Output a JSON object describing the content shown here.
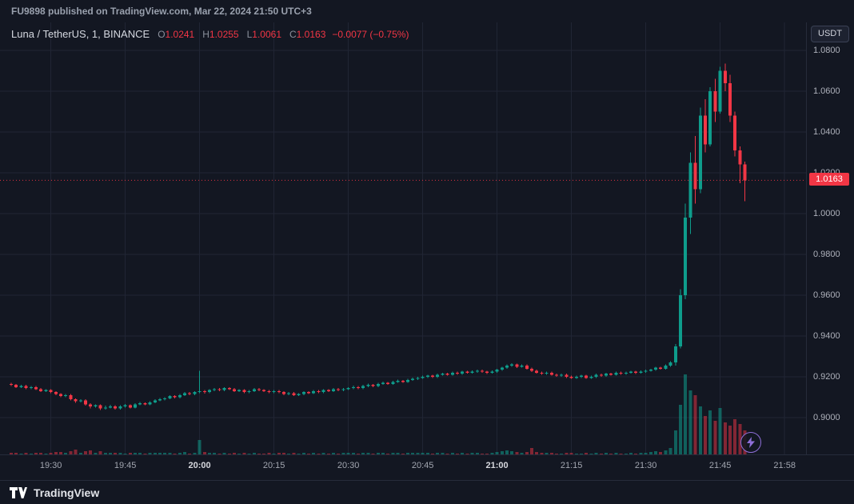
{
  "publish_bar": {
    "text": "FU9898 published on TradingView.com, Mar 22, 2024 21:50 UTC+3"
  },
  "legend": {
    "symbol": "Luna / TetherUS, 1, BINANCE",
    "ohlc": [
      {
        "label": "O",
        "value": "1.0241"
      },
      {
        "label": "H",
        "value": "1.0255"
      },
      {
        "label": "L",
        "value": "1.0061"
      },
      {
        "label": "C",
        "value": "1.0163"
      }
    ],
    "change": "−0.0077 (−0.75%)"
  },
  "price_scale": {
    "currency_button_label": "USDT",
    "last_price_label": "1.0163"
  },
  "footer": {
    "brand": "TradingView"
  },
  "icons": {
    "lightning": "lightning-bolt-in-circle",
    "brand_logo": "tradingview-logo"
  },
  "colors": {
    "background": "#131722",
    "grid": "#202534",
    "up": "#0e9d8c",
    "down": "#f23645",
    "volume_up": "rgba(14,157,140,0.55)",
    "volume_down": "rgba(242,54,69,0.5)",
    "last_price_line": "#f23645",
    "accent_purple": "#8e6fd8"
  },
  "chart_data": {
    "type": "candlestick",
    "title": "Luna / TetherUS, 1, BINANCE",
    "symbol": "LUNA/USDT",
    "exchange": "BINANCE",
    "interval_minutes": 1,
    "start_time": "19:22",
    "end_time": "21:50",
    "last_price": 1.0163,
    "y_ticks": [
      "1.0800",
      "1.0600",
      "1.0400",
      "1.0200",
      "1.0000",
      "0.9800",
      "0.9600",
      "0.9400",
      "0.9200",
      "0.9000"
    ],
    "y_visible_range": [
      0.882,
      1.093
    ],
    "x_ticks": [
      {
        "label": "19:30",
        "bold": false
      },
      {
        "label": "19:45",
        "bold": false
      },
      {
        "label": "20:00",
        "bold": true
      },
      {
        "label": "20:15",
        "bold": false
      },
      {
        "label": "20:30",
        "bold": false
      },
      {
        "label": "20:45",
        "bold": false
      },
      {
        "label": "21:00",
        "bold": true
      },
      {
        "label": "21:15",
        "bold": false
      },
      {
        "label": "21:30",
        "bold": false
      },
      {
        "label": "21:45",
        "bold": false
      },
      {
        "label": "21:58",
        "bold": false
      }
    ],
    "volume_units": "relative (100 = tallest bar)",
    "ohlcv_format": [
      "open",
      "high",
      "low",
      "close",
      "volume"
    ],
    "ohlcv": [
      [
        0.9165,
        0.917,
        0.9155,
        0.916,
        2
      ],
      [
        0.916,
        0.9165,
        0.9145,
        0.915,
        2
      ],
      [
        0.915,
        0.916,
        0.9145,
        0.9155,
        1
      ],
      [
        0.9155,
        0.916,
        0.914,
        0.9145,
        2
      ],
      [
        0.9145,
        0.9155,
        0.914,
        0.915,
        1
      ],
      [
        0.915,
        0.9155,
        0.9135,
        0.914,
        2
      ],
      [
        0.914,
        0.9145,
        0.9125,
        0.913,
        2
      ],
      [
        0.913,
        0.914,
        0.9125,
        0.9135,
        1
      ],
      [
        0.9135,
        0.914,
        0.912,
        0.9125,
        2
      ],
      [
        0.9125,
        0.913,
        0.911,
        0.9115,
        3
      ],
      [
        0.9115,
        0.912,
        0.91,
        0.9105,
        3
      ],
      [
        0.9105,
        0.9115,
        0.91,
        0.911,
        2
      ],
      [
        0.911,
        0.9115,
        0.9085,
        0.909,
        4
      ],
      [
        0.909,
        0.9095,
        0.9072,
        0.908,
        6
      ],
      [
        0.908,
        0.909,
        0.9075,
        0.9085,
        2
      ],
      [
        0.9085,
        0.909,
        0.9058,
        0.9065,
        4
      ],
      [
        0.9065,
        0.907,
        0.9045,
        0.9055,
        5
      ],
      [
        0.9055,
        0.9065,
        0.905,
        0.906,
        2
      ],
      [
        0.906,
        0.9065,
        0.9038,
        0.9045,
        4
      ],
      [
        0.9045,
        0.9058,
        0.904,
        0.905,
        2
      ],
      [
        0.905,
        0.9062,
        0.9045,
        0.9055,
        2
      ],
      [
        0.9055,
        0.906,
        0.904,
        0.9045,
        2
      ],
      [
        0.9045,
        0.906,
        0.904,
        0.9055,
        2
      ],
      [
        0.9055,
        0.9066,
        0.905,
        0.906,
        1
      ],
      [
        0.906,
        0.9065,
        0.9045,
        0.905,
        2
      ],
      [
        0.905,
        0.907,
        0.9046,
        0.9065,
        2
      ],
      [
        0.9065,
        0.9076,
        0.906,
        0.907,
        2
      ],
      [
        0.907,
        0.9075,
        0.906,
        0.9065,
        1
      ],
      [
        0.9065,
        0.908,
        0.906,
        0.9075,
        2
      ],
      [
        0.9075,
        0.909,
        0.907,
        0.9085,
        2
      ],
      [
        0.9085,
        0.9096,
        0.908,
        0.909,
        2
      ],
      [
        0.909,
        0.91,
        0.9085,
        0.9095,
        2
      ],
      [
        0.9095,
        0.911,
        0.909,
        0.9105,
        2
      ],
      [
        0.9105,
        0.911,
        0.9094,
        0.91,
        1
      ],
      [
        0.91,
        0.9116,
        0.9095,
        0.911,
        2
      ],
      [
        0.911,
        0.9125,
        0.9105,
        0.912,
        3
      ],
      [
        0.912,
        0.9125,
        0.911,
        0.9115,
        1
      ],
      [
        0.9115,
        0.913,
        0.911,
        0.9125,
        2
      ],
      [
        0.9125,
        0.923,
        0.912,
        0.913,
        18
      ],
      [
        0.913,
        0.9136,
        0.9118,
        0.9125,
        3
      ],
      [
        0.9125,
        0.914,
        0.912,
        0.9135,
        2
      ],
      [
        0.9135,
        0.9146,
        0.913,
        0.914,
        2
      ],
      [
        0.914,
        0.9145,
        0.913,
        0.9135,
        1
      ],
      [
        0.9135,
        0.915,
        0.913,
        0.9145,
        2
      ],
      [
        0.9145,
        0.915,
        0.9135,
        0.914,
        1
      ],
      [
        0.914,
        0.9145,
        0.9125,
        0.913,
        2
      ],
      [
        0.913,
        0.914,
        0.9125,
        0.9135,
        1
      ],
      [
        0.9135,
        0.914,
        0.912,
        0.9125,
        2
      ],
      [
        0.9125,
        0.9136,
        0.912,
        0.913,
        1
      ],
      [
        0.913,
        0.9145,
        0.9125,
        0.914,
        2
      ],
      [
        0.914,
        0.9145,
        0.913,
        0.9135,
        1
      ],
      [
        0.9135,
        0.914,
        0.9125,
        0.913,
        1
      ],
      [
        0.913,
        0.9135,
        0.912,
        0.9125,
        2
      ],
      [
        0.9125,
        0.9136,
        0.912,
        0.913,
        1
      ],
      [
        0.913,
        0.9135,
        0.912,
        0.9125,
        2
      ],
      [
        0.9125,
        0.913,
        0.911,
        0.9115,
        2
      ],
      [
        0.9115,
        0.9126,
        0.911,
        0.912,
        1
      ],
      [
        0.912,
        0.9125,
        0.9105,
        0.911,
        2
      ],
      [
        0.911,
        0.912,
        0.9105,
        0.9115,
        1
      ],
      [
        0.9115,
        0.913,
        0.911,
        0.9125,
        2
      ],
      [
        0.9125,
        0.913,
        0.9115,
        0.912,
        1
      ],
      [
        0.912,
        0.9135,
        0.9115,
        0.913,
        2
      ],
      [
        0.913,
        0.9135,
        0.912,
        0.9125,
        1
      ],
      [
        0.9125,
        0.914,
        0.912,
        0.9135,
        2
      ],
      [
        0.9135,
        0.914,
        0.9125,
        0.913,
        1
      ],
      [
        0.913,
        0.9145,
        0.9125,
        0.914,
        2
      ],
      [
        0.914,
        0.9145,
        0.913,
        0.9135,
        1
      ],
      [
        0.9135,
        0.9146,
        0.913,
        0.914,
        2
      ],
      [
        0.914,
        0.915,
        0.9135,
        0.9145,
        2
      ],
      [
        0.9145,
        0.9156,
        0.914,
        0.915,
        2
      ],
      [
        0.915,
        0.9155,
        0.914,
        0.9145,
        1
      ],
      [
        0.9145,
        0.916,
        0.914,
        0.9155,
        2
      ],
      [
        0.9155,
        0.9166,
        0.915,
        0.916,
        2
      ],
      [
        0.916,
        0.9165,
        0.915,
        0.9155,
        1
      ],
      [
        0.9155,
        0.917,
        0.915,
        0.9165,
        2
      ],
      [
        0.9165,
        0.9176,
        0.916,
        0.917,
        2
      ],
      [
        0.917,
        0.9175,
        0.916,
        0.9165,
        1
      ],
      [
        0.9165,
        0.918,
        0.916,
        0.9175,
        2
      ],
      [
        0.9175,
        0.9186,
        0.917,
        0.918,
        2
      ],
      [
        0.918,
        0.9185,
        0.917,
        0.9175,
        1
      ],
      [
        0.9175,
        0.919,
        0.917,
        0.9185,
        2
      ],
      [
        0.9185,
        0.9196,
        0.918,
        0.919,
        2
      ],
      [
        0.919,
        0.92,
        0.9185,
        0.9195,
        2
      ],
      [
        0.9195,
        0.9206,
        0.919,
        0.92,
        2
      ],
      [
        0.92,
        0.921,
        0.9195,
        0.9205,
        2
      ],
      [
        0.9205,
        0.921,
        0.9194,
        0.92,
        1
      ],
      [
        0.92,
        0.9215,
        0.9195,
        0.921,
        2
      ],
      [
        0.921,
        0.922,
        0.9205,
        0.9215,
        2
      ],
      [
        0.9215,
        0.922,
        0.9205,
        0.921,
        1
      ],
      [
        0.921,
        0.9225,
        0.9205,
        0.922,
        2
      ],
      [
        0.922,
        0.9225,
        0.921,
        0.9215,
        1
      ],
      [
        0.9215,
        0.923,
        0.921,
        0.9225,
        2
      ],
      [
        0.9225,
        0.923,
        0.9215,
        0.922,
        1
      ],
      [
        0.922,
        0.9231,
        0.9215,
        0.9225,
        2
      ],
      [
        0.9225,
        0.9236,
        0.922,
        0.923,
        2
      ],
      [
        0.923,
        0.9235,
        0.922,
        0.9225,
        1
      ],
      [
        0.9225,
        0.923,
        0.9214,
        0.922,
        1
      ],
      [
        0.922,
        0.9231,
        0.9215,
        0.9225,
        2
      ],
      [
        0.9225,
        0.924,
        0.922,
        0.9235,
        3
      ],
      [
        0.9235,
        0.925,
        0.923,
        0.9245,
        4
      ],
      [
        0.9245,
        0.926,
        0.924,
        0.9255,
        5
      ],
      [
        0.9255,
        0.9266,
        0.925,
        0.926,
        4
      ],
      [
        0.926,
        0.9265,
        0.9244,
        0.925,
        3
      ],
      [
        0.925,
        0.926,
        0.9245,
        0.9255,
        2
      ],
      [
        0.9255,
        0.926,
        0.9235,
        0.924,
        3
      ],
      [
        0.924,
        0.9245,
        0.9224,
        0.923,
        8
      ],
      [
        0.923,
        0.9235,
        0.9215,
        0.922,
        3
      ],
      [
        0.922,
        0.9226,
        0.921,
        0.9215,
        2
      ],
      [
        0.9215,
        0.9226,
        0.921,
        0.922,
        2
      ],
      [
        0.922,
        0.9225,
        0.9205,
        0.921,
        2
      ],
      [
        0.921,
        0.9215,
        0.92,
        0.9205,
        1
      ],
      [
        0.9205,
        0.9216,
        0.92,
        0.921,
        1
      ],
      [
        0.921,
        0.9215,
        0.9195,
        0.92,
        2
      ],
      [
        0.92,
        0.9205,
        0.919,
        0.9195,
        2
      ],
      [
        0.9195,
        0.9206,
        0.919,
        0.92,
        1
      ],
      [
        0.92,
        0.921,
        0.9195,
        0.9205,
        1
      ],
      [
        0.9205,
        0.921,
        0.919,
        0.9195,
        2
      ],
      [
        0.9195,
        0.9206,
        0.919,
        0.92,
        1
      ],
      [
        0.92,
        0.9215,
        0.9195,
        0.921,
        2
      ],
      [
        0.921,
        0.9215,
        0.92,
        0.9205,
        1
      ],
      [
        0.9205,
        0.922,
        0.92,
        0.9215,
        2
      ],
      [
        0.9215,
        0.922,
        0.9205,
        0.921,
        1
      ],
      [
        0.921,
        0.9225,
        0.9205,
        0.922,
        2
      ],
      [
        0.922,
        0.9225,
        0.921,
        0.9215,
        1
      ],
      [
        0.9215,
        0.9226,
        0.921,
        0.922,
        1
      ],
      [
        0.922,
        0.923,
        0.9215,
        0.9225,
        2
      ],
      [
        0.9225,
        0.923,
        0.9214,
        0.922,
        1
      ],
      [
        0.922,
        0.9231,
        0.9215,
        0.9225,
        2
      ],
      [
        0.9225,
        0.9236,
        0.922,
        0.923,
        2
      ],
      [
        0.923,
        0.924,
        0.9225,
        0.9235,
        3
      ],
      [
        0.9235,
        0.925,
        0.923,
        0.9245,
        4
      ],
      [
        0.9245,
        0.925,
        0.9235,
        0.924,
        3
      ],
      [
        0.924,
        0.926,
        0.9235,
        0.9255,
        5
      ],
      [
        0.9255,
        0.9276,
        0.925,
        0.927,
        8
      ],
      [
        0.927,
        0.936,
        0.9255,
        0.935,
        30
      ],
      [
        0.935,
        0.963,
        0.934,
        0.96,
        62
      ],
      [
        0.96,
        1.005,
        0.958,
        0.998,
        100
      ],
      [
        0.998,
        1.03,
        0.99,
        1.025,
        80
      ],
      [
        1.025,
        1.038,
        1.005,
        1.012,
        74
      ],
      [
        1.012,
        1.052,
        1.01,
        1.048,
        60
      ],
      [
        1.048,
        1.056,
        1.03,
        1.034,
        48
      ],
      [
        1.034,
        1.062,
        1.033,
        1.06,
        55
      ],
      [
        1.06,
        1.066,
        1.045,
        1.05,
        42
      ],
      [
        1.05,
        1.072,
        1.049,
        1.07,
        58
      ],
      [
        1.07,
        1.0735,
        1.06,
        1.064,
        40
      ],
      [
        1.064,
        1.068,
        1.045,
        1.048,
        36
      ],
      [
        1.048,
        1.05,
        1.028,
        1.031,
        44
      ],
      [
        1.031,
        1.033,
        1.015,
        1.0241,
        38
      ],
      [
        1.0241,
        1.0255,
        1.0061,
        1.0163,
        30
      ]
    ]
  }
}
